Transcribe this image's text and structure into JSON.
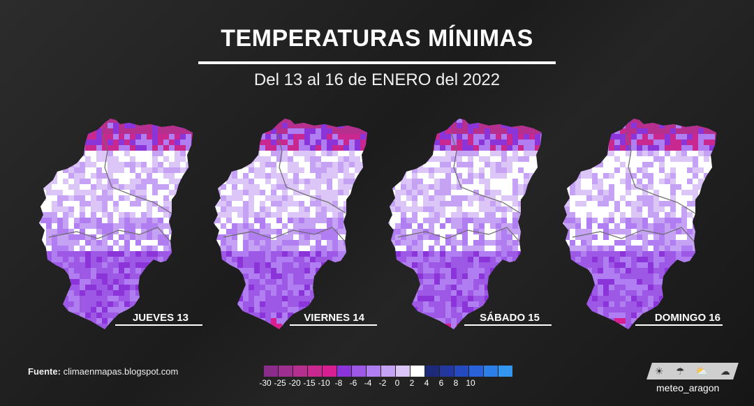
{
  "header": {
    "title": "TEMPERATURAS MÍNIMAS",
    "subtitle": "Del 13 al 16 de ENERO del 2022"
  },
  "maps": [
    {
      "day": "JUEVES 13",
      "white": 0.35,
      "magenta": 0.9
    },
    {
      "day": "VIERNES 14",
      "white": 0.3,
      "magenta": 0.8
    },
    {
      "day": "SÁBADO 15",
      "white": 0.35,
      "magenta": 0.75
    },
    {
      "day": "DOMINGO 16",
      "white": 0.5,
      "magenta": 0.7
    }
  ],
  "footer": {
    "source_label": "Fuente:",
    "source_value": "climaenmapas.blogspot.com",
    "brand": "meteo_aragon"
  },
  "legend": {
    "colors": [
      "#8a2c8a",
      "#9c2f8f",
      "#b42f8e",
      "#c8288f",
      "#d81f92",
      "#8a34d9",
      "#9d58e6",
      "#b07ef0",
      "#c6a2f4",
      "#dcc6f8",
      "#ffffff",
      "#1d2a7a",
      "#23389e",
      "#2549bf",
      "#2a62da",
      "#2c7fe9",
      "#3397f2"
    ],
    "ticks": [
      "-30",
      "-25",
      "-20",
      "-15",
      "-10",
      "-8",
      "-6",
      "-4",
      "-2",
      "0",
      "2",
      "4",
      "6",
      "8",
      "10"
    ]
  },
  "icons": [
    "sun-icon",
    "cloud-rain-icon",
    "cloud-sun-icon",
    "storm-icon"
  ]
}
